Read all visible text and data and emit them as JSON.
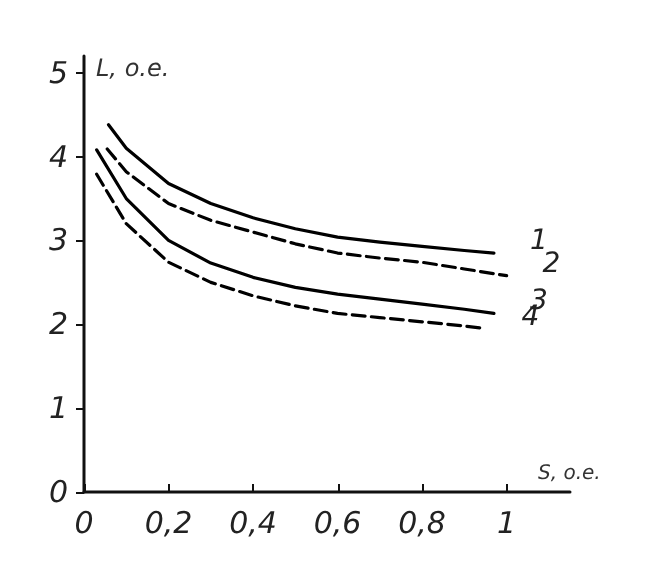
{
  "chart_data": {
    "type": "line",
    "xlabel": "S, o.e.",
    "ylabel": "L, o.e.",
    "xlim": [
      0,
      1.15
    ],
    "ylim": [
      0,
      5.2
    ],
    "xticks": [
      0,
      {
        "value": 0.2,
        "label": "0,2"
      },
      {
        "value": 0.4,
        "label": "0,4"
      },
      {
        "value": 0.6,
        "label": "0,6"
      },
      {
        "value": 0.8,
        "label": "0,8"
      },
      1
    ],
    "yticks": [
      0,
      1,
      2,
      3,
      4,
      5
    ],
    "grid": false,
    "legend": false,
    "marker": "none",
    "series": [
      {
        "name": "1",
        "color": "#000000",
        "line_style": "solid",
        "x": [
          0.058,
          0.1,
          0.2,
          0.3,
          0.4,
          0.5,
          0.6,
          0.7,
          0.8,
          0.9,
          0.97
        ],
        "values": [
          4.38,
          4.1,
          3.68,
          3.44,
          3.27,
          3.14,
          3.04,
          2.98,
          2.93,
          2.88,
          2.85
        ]
      },
      {
        "name": "2",
        "color": "#000000",
        "line_style": "dashed",
        "x": [
          0.055,
          0.1,
          0.2,
          0.3,
          0.4,
          0.5,
          0.6,
          0.7,
          0.8,
          0.9,
          1.0
        ],
        "values": [
          4.09,
          3.82,
          3.44,
          3.24,
          3.1,
          2.96,
          2.85,
          2.79,
          2.74,
          2.66,
          2.58
        ]
      },
      {
        "name": "3",
        "color": "#000000",
        "line_style": "solid",
        "x": [
          0.03,
          0.1,
          0.2,
          0.3,
          0.4,
          0.5,
          0.6,
          0.7,
          0.8,
          0.9,
          0.97
        ],
        "values": [
          4.08,
          3.5,
          3.0,
          2.73,
          2.56,
          2.44,
          2.36,
          2.3,
          2.24,
          2.18,
          2.13
        ]
      },
      {
        "name": "4",
        "color": "#000000",
        "line_style": "dashed",
        "x": [
          0.03,
          0.1,
          0.2,
          0.3,
          0.4,
          0.5,
          0.6,
          0.7,
          0.8,
          0.9,
          0.95
        ],
        "values": [
          3.79,
          3.2,
          2.74,
          2.5,
          2.34,
          2.22,
          2.13,
          2.08,
          2.03,
          1.98,
          1.95
        ]
      }
    ]
  }
}
